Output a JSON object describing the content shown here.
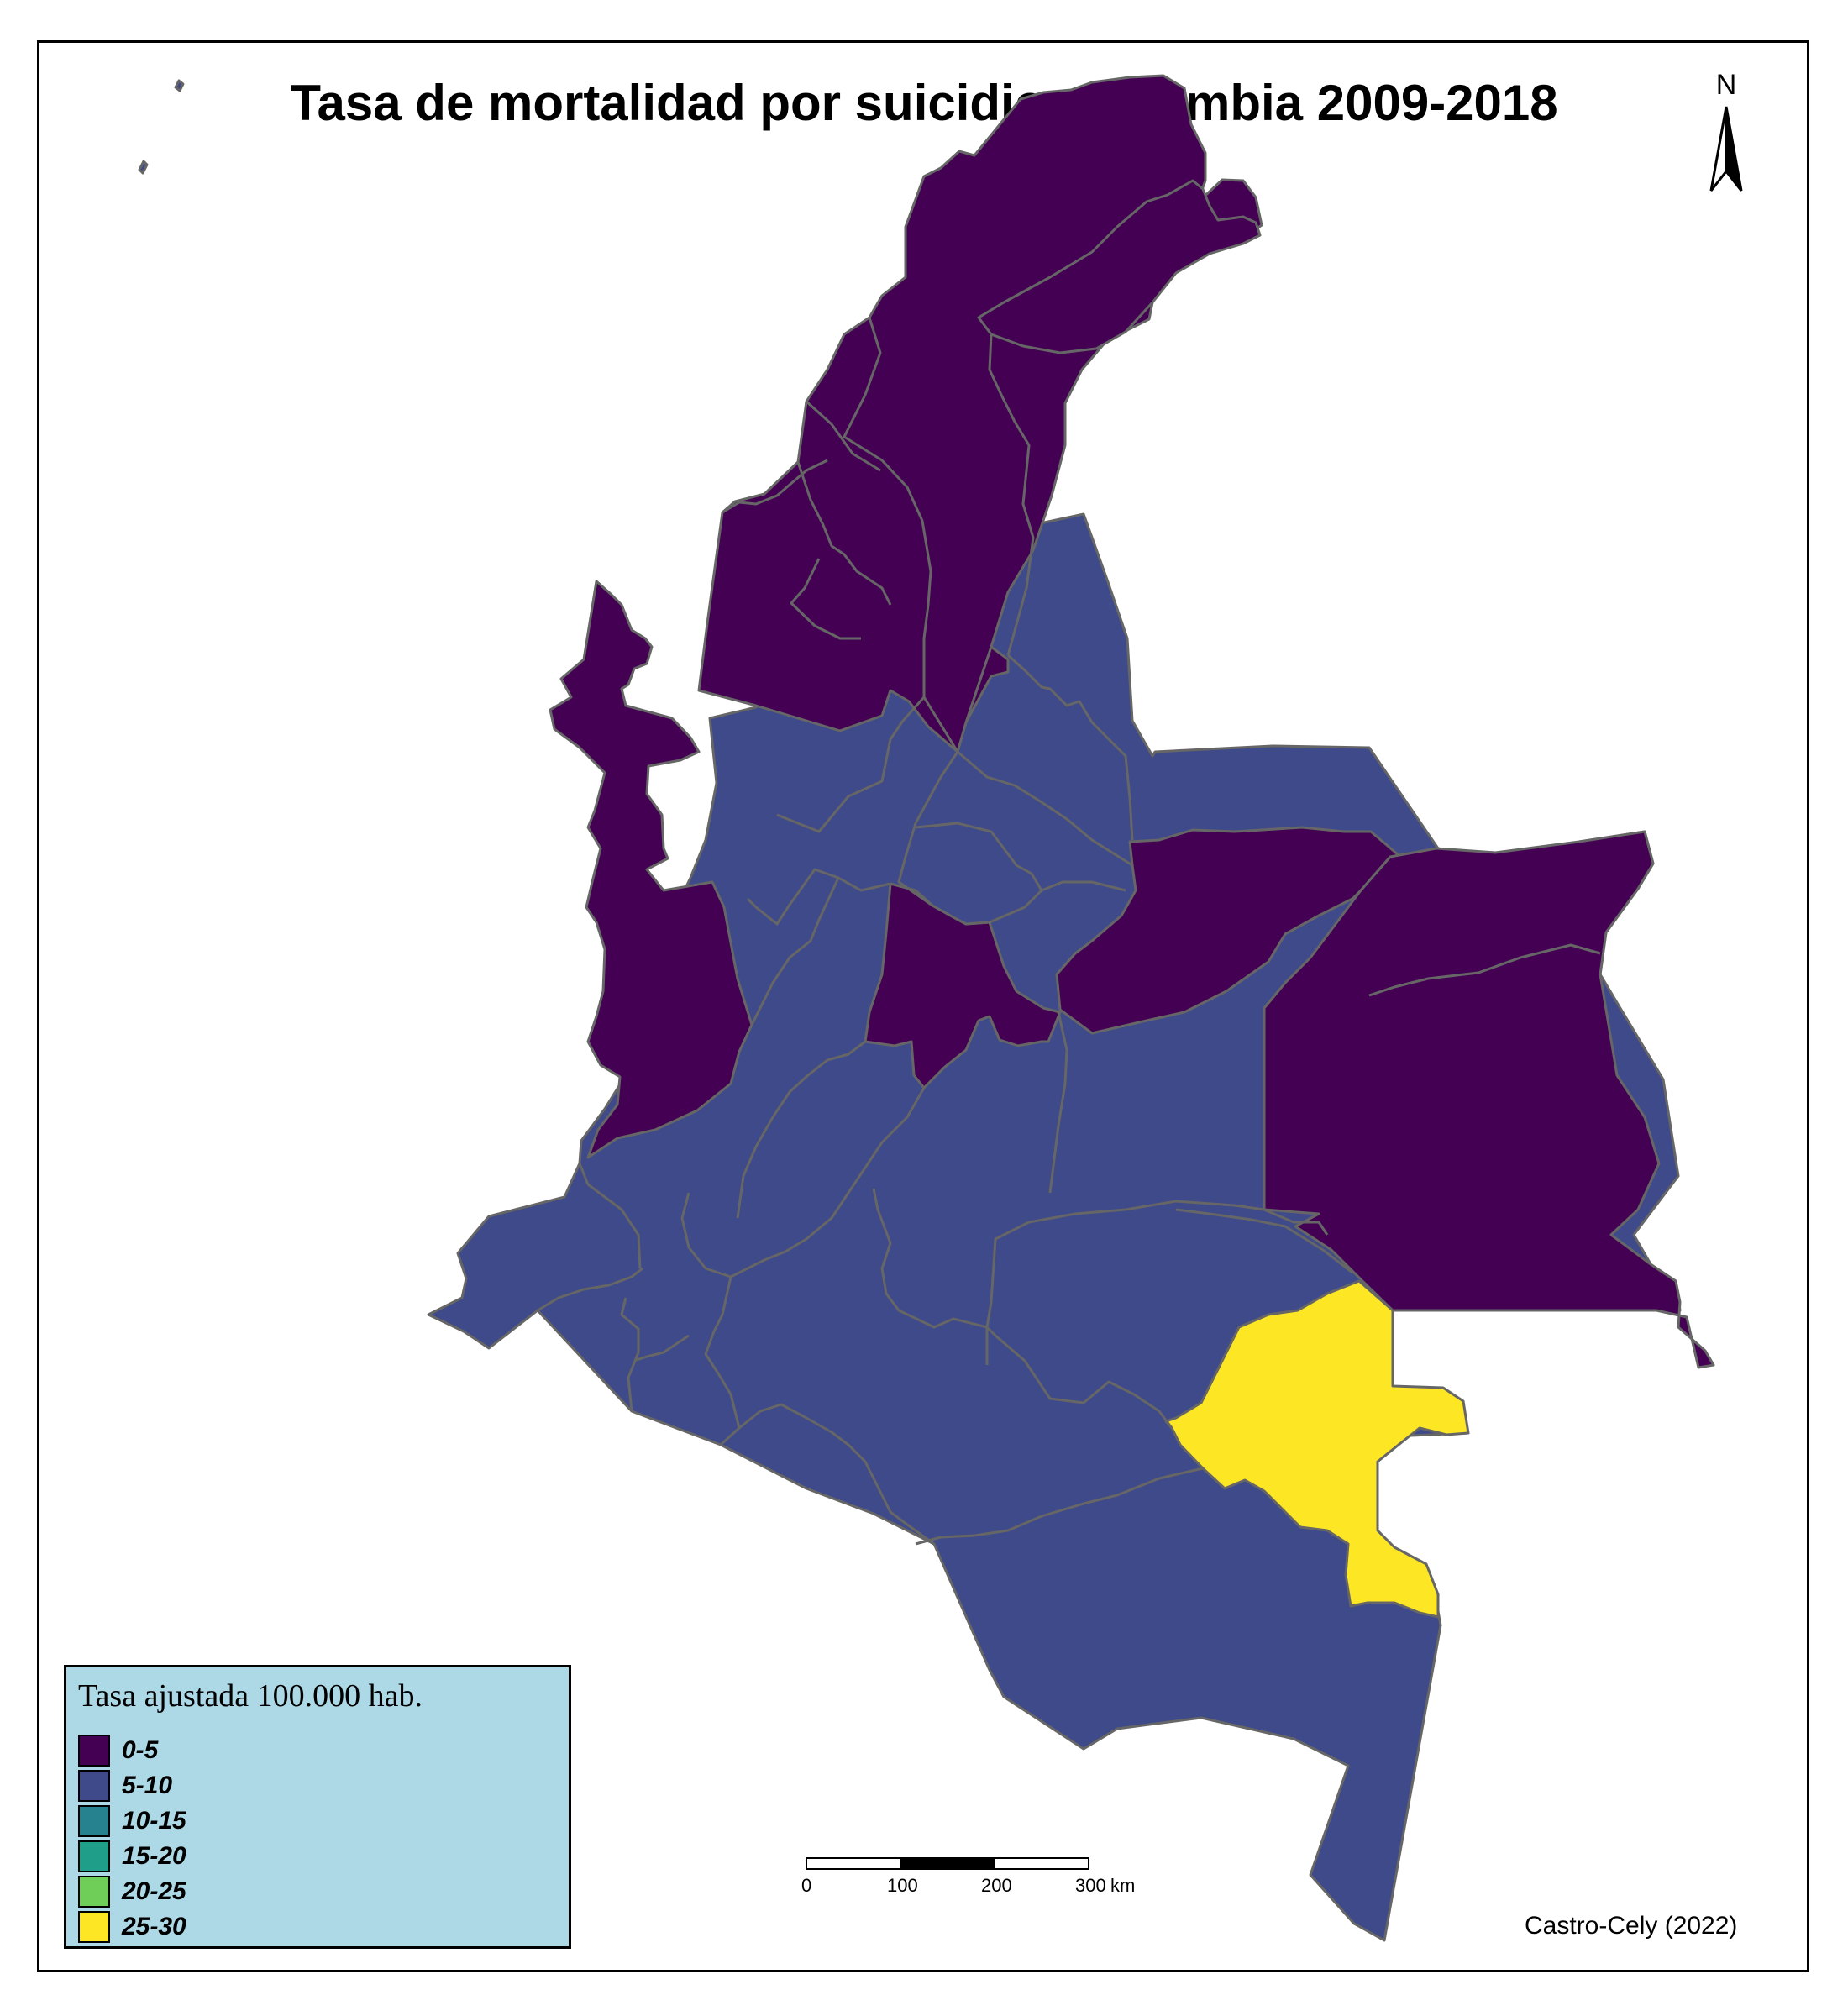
{
  "title": "Tasa de mortalidad por suicidio, Colombia 2009-2018",
  "north_arrow": {
    "letter": "N"
  },
  "legend": {
    "title": "Tasa ajustada 100.000 hab.",
    "items": [
      {
        "label": "0-5",
        "color": "#440154"
      },
      {
        "label": "5-10",
        "color": "#3e4a89"
      },
      {
        "label": "10-15",
        "color": "#26828e"
      },
      {
        "label": "15-20",
        "color": "#1f9e89"
      },
      {
        "label": "20-25",
        "color": "#6ece58"
      },
      {
        "label": "25-30",
        "color": "#fde725"
      }
    ]
  },
  "scale_bar": {
    "labels": [
      "0",
      "100",
      "200",
      "300"
    ],
    "unit": "km"
  },
  "credit": "Castro-Cely (2022)",
  "colors": {
    "border": "#666666",
    "frame": "#000000",
    "legend_bg": "#add8e6"
  }
}
